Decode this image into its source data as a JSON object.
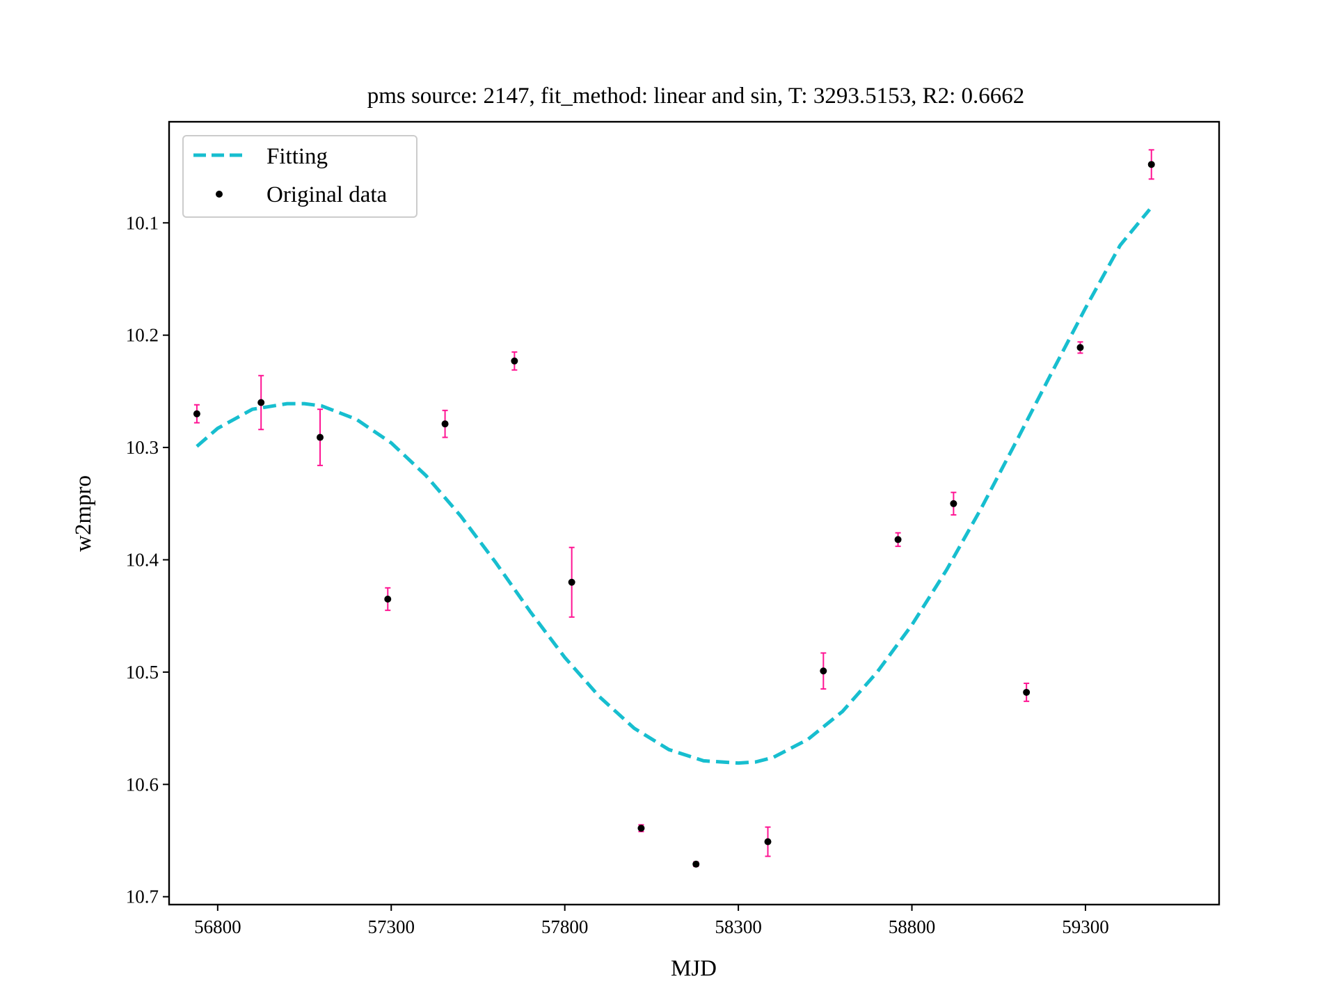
{
  "chart_data": {
    "type": "scatter",
    "title": "pms source: 2147, fit_method: linear and sin,  T: 3293.5153,  R2: 0.6662",
    "xlabel": "MJD",
    "ylabel": "w2mpro",
    "xlim": [
      56660,
      59685
    ],
    "ylim": [
      10.707,
      10.01
    ],
    "y_inverted": true,
    "x_ticks": [
      56800,
      57300,
      57800,
      58300,
      58800,
      59300
    ],
    "y_ticks": [
      10.1,
      10.2,
      10.3,
      10.4,
      10.5,
      10.6,
      10.7
    ],
    "x_tick_labels": [
      "56800",
      "57300",
      "57800",
      "58300",
      "58800",
      "59300"
    ],
    "y_tick_labels": [
      "10.1",
      "10.2",
      "10.3",
      "10.4",
      "10.5",
      "10.6",
      "10.7"
    ],
    "grid": false,
    "legend": {
      "placement": "upper left",
      "entries": [
        "Fitting",
        "Original data"
      ]
    },
    "series": [
      {
        "name": "Fitting",
        "kind": "line",
        "style": "dashed",
        "color": "#17BECF",
        "x": [
          56740,
          56800,
          56900,
          57000,
          57050,
          57100,
          57200,
          57300,
          57400,
          57500,
          57600,
          57700,
          57800,
          57900,
          58000,
          58100,
          58200,
          58300,
          58350,
          58400,
          58500,
          58600,
          58700,
          58800,
          58900,
          59000,
          59100,
          59200,
          59300,
          59400,
          59485
        ],
        "y": [
          10.299,
          10.283,
          10.266,
          10.261,
          10.261,
          10.263,
          10.275,
          10.296,
          10.325,
          10.361,
          10.402,
          10.446,
          10.487,
          10.522,
          10.55,
          10.569,
          10.579,
          10.581,
          10.58,
          10.576,
          10.56,
          10.535,
          10.5,
          10.458,
          10.409,
          10.354,
          10.295,
          10.235,
          10.176,
          10.12,
          10.088
        ]
      },
      {
        "name": "Original data",
        "kind": "scatter",
        "color": "#000000",
        "error_color": "#FF1493",
        "x": [
          56740,
          56925,
          57095,
          57290,
          57455,
          57655,
          57820,
          58020,
          58178,
          58385,
          58545,
          58760,
          58920,
          59130,
          59285,
          59490
        ],
        "y": [
          10.27,
          10.26,
          10.291,
          10.435,
          10.279,
          10.223,
          10.42,
          10.639,
          10.671,
          10.651,
          10.499,
          10.382,
          10.35,
          10.518,
          10.211,
          10.048
        ],
        "yerr": [
          0.008,
          0.024,
          0.025,
          0.01,
          0.012,
          0.008,
          0.031,
          0.003,
          0.002,
          0.013,
          0.016,
          0.006,
          0.01,
          0.008,
          0.005,
          0.013
        ]
      }
    ]
  }
}
